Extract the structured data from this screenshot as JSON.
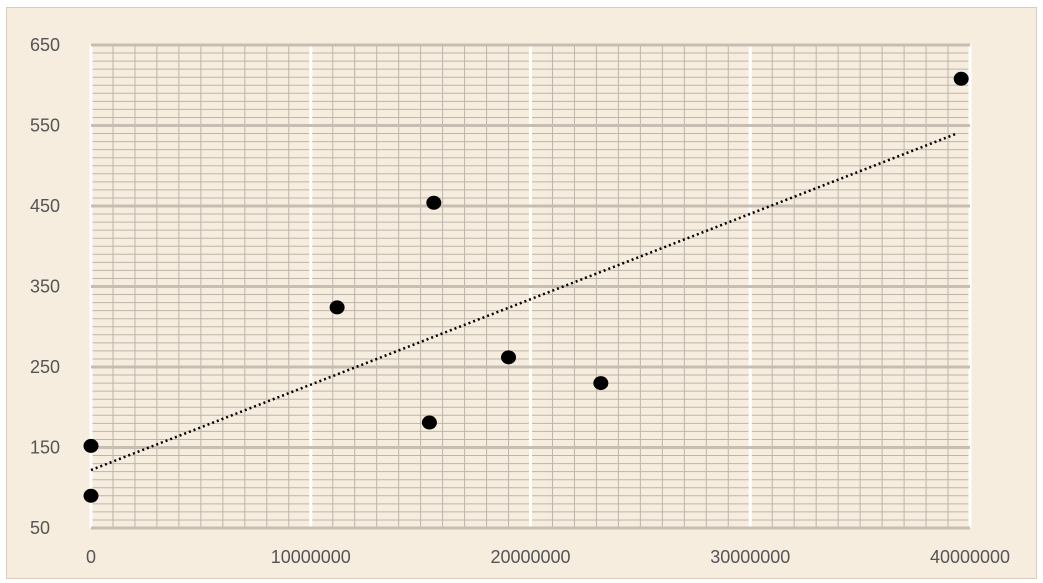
{
  "chart_data": {
    "type": "scatter",
    "title": "",
    "xlabel": "",
    "ylabel": "",
    "xlim": [
      0,
      40000000
    ],
    "ylim": [
      50,
      650
    ],
    "x_ticks": [
      0,
      10000000,
      20000000,
      30000000,
      40000000
    ],
    "x_tick_labels": [
      "0",
      "10000000",
      "20000000",
      "30000000",
      "40000000"
    ],
    "y_ticks": [
      50,
      150,
      250,
      350,
      450,
      550,
      650
    ],
    "y_tick_labels": [
      "50",
      "150",
      "250",
      "350",
      "450",
      "550",
      "650"
    ],
    "grid": "on (major and minor)",
    "legend": "none",
    "series": [
      {
        "points": [
          {
            "x": 0,
            "y": 90
          },
          {
            "x": 0,
            "y": 152
          },
          {
            "x": 11200000,
            "y": 324
          },
          {
            "x": 15400000,
            "y": 181
          },
          {
            "x": 15600000,
            "y": 454
          },
          {
            "x": 19000000,
            "y": 262
          },
          {
            "x": 23200000,
            "y": 230
          },
          {
            "x": 39600000,
            "y": 608
          }
        ]
      }
    ],
    "trendline": {
      "style": "dotted",
      "type": "linear",
      "from": {
        "x": 0,
        "y": 122
      },
      "to": {
        "x": 39400000,
        "y": 540
      }
    },
    "colors": {
      "background": "#f6eddf",
      "minor_grid": "#bdb5aa",
      "major_grid": "#c6beb2",
      "vertical_major_grid": "#ffffff",
      "marker": "#000000",
      "trendline": "#000000",
      "tick_text": "#555555"
    }
  }
}
